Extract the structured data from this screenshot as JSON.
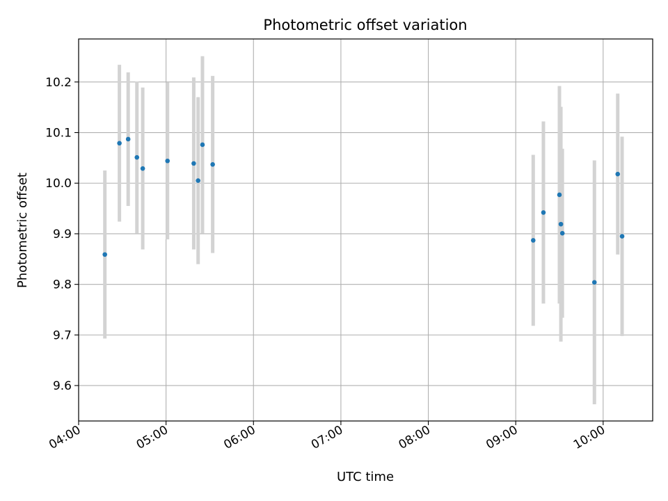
{
  "chart_data": {
    "type": "scatter",
    "title": "Photometric offset variation",
    "xlabel": "UTC time",
    "ylabel": "Photometric offset",
    "x_ticks": [
      "04:00",
      "05:00",
      "06:00",
      "07:00",
      "08:00",
      "09:00",
      "10:00"
    ],
    "y_ticks": [
      "9.6",
      "9.7",
      "9.8",
      "9.9",
      "10.0",
      "10.1",
      "10.2"
    ],
    "xlim": [
      "04:00",
      "10:34"
    ],
    "ylim": [
      9.53,
      10.285
    ],
    "grid": true,
    "colors": {
      "point": "#1f77b4",
      "errorbar": "#d3d3d3",
      "grid": "#b0b0b0"
    },
    "points": [
      {
        "x": "04:18",
        "y": 9.859,
        "err": 0.166
      },
      {
        "x": "04:28",
        "y": 10.079,
        "err": 0.155
      },
      {
        "x": "04:34",
        "y": 10.087,
        "err": 0.132
      },
      {
        "x": "04:40",
        "y": 10.051,
        "err": 0.15
      },
      {
        "x": "04:44",
        "y": 10.029,
        "err": 0.16
      },
      {
        "x": "05:01",
        "y": 10.044,
        "err": 0.155
      },
      {
        "x": "05:19",
        "y": 10.039,
        "err": 0.17
      },
      {
        "x": "05:22",
        "y": 10.005,
        "err": 0.165
      },
      {
        "x": "05:25",
        "y": 10.076,
        "err": 0.175
      },
      {
        "x": "05:32",
        "y": 10.037,
        "err": 0.175
      },
      {
        "x": "09:12",
        "y": 9.887,
        "err": 0.169
      },
      {
        "x": "09:19",
        "y": 9.942,
        "err": 0.18
      },
      {
        "x": "09:30",
        "y": 9.977,
        "err": 0.215
      },
      {
        "x": "09:31",
        "y": 9.919,
        "err": 0.232
      },
      {
        "x": "09:32",
        "y": 9.901,
        "err": 0.167
      },
      {
        "x": "09:54",
        "y": 9.804,
        "err": 0.241
      },
      {
        "x": "10:10",
        "y": 10.018,
        "err": 0.159
      },
      {
        "x": "10:13",
        "y": 9.895,
        "err": 0.197
      }
    ]
  }
}
